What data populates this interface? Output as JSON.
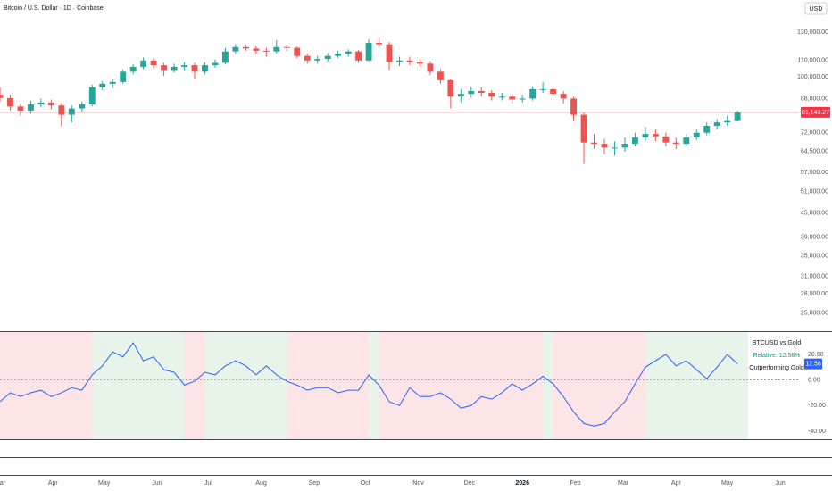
{
  "chart_data": [
    {
      "type": "candlestick",
      "title": "Bitcoin / U.S. Dollar · 1D · Coinbase",
      "currency": "USD",
      "x": [
        0,
        6,
        12,
        18,
        24,
        30,
        36,
        42,
        48,
        54,
        60,
        66,
        72,
        78,
        84,
        90,
        96,
        102,
        108,
        114,
        120,
        126,
        132,
        138,
        144,
        150,
        156,
        162,
        168,
        174,
        180,
        186,
        192,
        198,
        204,
        210,
        216,
        222,
        228,
        234,
        240,
        246,
        252,
        258,
        264,
        270,
        276,
        282,
        288,
        294,
        300,
        306,
        312,
        318,
        324,
        330,
        336,
        342,
        348,
        354,
        360,
        366,
        372,
        378,
        384,
        390,
        396,
        402,
        408,
        414,
        420,
        426,
        432
      ],
      "open": [
        90000,
        88300,
        84000,
        82000,
        85000,
        86000,
        84500,
        80000,
        83000,
        85000,
        94000,
        96000,
        97000,
        103000,
        106000,
        110000,
        107000,
        104000,
        106000,
        107000,
        103000,
        107000,
        108500,
        116000,
        119000,
        118000,
        116500,
        116000,
        119000,
        118500,
        113000,
        110000,
        111000,
        113000,
        114500,
        116000,
        110000,
        122000,
        121000,
        109000,
        110000,
        109000,
        108000,
        103000,
        98000,
        89000,
        90500,
        92000,
        91000,
        89000,
        89000,
        87500,
        88000,
        93000,
        93000,
        90500,
        88000,
        80000,
        68000,
        67500,
        66000,
        66000,
        67500,
        70000,
        71500,
        70500,
        68000,
        67500,
        70000,
        72000,
        75000,
        76500,
        77500
      ],
      "high": [
        94000,
        90000,
        85500,
        86800,
        88000,
        87500,
        85500,
        84500,
        86500,
        95500,
        97500,
        98500,
        104500,
        107500,
        112000,
        111500,
        108500,
        108000,
        109000,
        108500,
        108500,
        110500,
        118500,
        121000,
        120500,
        120000,
        118500,
        124000,
        121000,
        119500,
        114500,
        113000,
        115000,
        116500,
        117500,
        117000,
        124500,
        126000,
        122500,
        112500,
        112500,
        111000,
        109500,
        104500,
        99000,
        93000,
        94500,
        94000,
        92500,
        91000,
        90500,
        90000,
        94500,
        97000,
        94500,
        92000,
        89000,
        81000,
        71500,
        69500,
        68500,
        70000,
        72000,
        74500,
        73500,
        72000,
        70000,
        71500,
        73500,
        76500,
        78000,
        79500,
        82000
      ],
      "low": [
        86500,
        82000,
        79500,
        80500,
        83500,
        82500,
        74800,
        76500,
        81500,
        84000,
        92500,
        93500,
        96000,
        101500,
        104500,
        105000,
        100500,
        102500,
        104000,
        99000,
        101500,
        105500,
        107500,
        114500,
        116500,
        114500,
        112500,
        114500,
        116500,
        111500,
        108000,
        108000,
        109500,
        111500,
        112500,
        108500,
        109500,
        119500,
        104000,
        106500,
        107000,
        106000,
        101000,
        96000,
        83000,
        86000,
        88500,
        89000,
        87000,
        87000,
        85500,
        86000,
        87000,
        91000,
        89000,
        85500,
        77000,
        60000,
        65500,
        63500,
        63000,
        64500,
        66500,
        68500,
        68500,
        66500,
        65500,
        66500,
        69000,
        71000,
        73500,
        75000,
        77000
      ],
      "close": [
        88300,
        84000,
        82000,
        85000,
        86000,
        84500,
        80000,
        83000,
        85000,
        94000,
        96000,
        97000,
        103000,
        106000,
        110000,
        107000,
        104000,
        106000,
        107000,
        103000,
        107000,
        108500,
        116000,
        119000,
        118000,
        116500,
        116000,
        119000,
        118500,
        113000,
        110000,
        111000,
        113000,
        114500,
        116000,
        110000,
        122000,
        121000,
        109000,
        110000,
        109000,
        108000,
        103000,
        98000,
        89000,
        90500,
        92000,
        91000,
        89000,
        89000,
        87500,
        88000,
        93000,
        93000,
        90500,
        88000,
        80000,
        68000,
        67500,
        66000,
        66000,
        67500,
        70000,
        71500,
        70500,
        68000,
        67500,
        70000,
        72000,
        75000,
        76500,
        77500,
        81143.27
      ],
      "last_label": "81,143.27",
      "up_color": "#26a69a",
      "down_color": "#ef5350",
      "price_line_color": "#f23645",
      "log_scale": true,
      "xlim": [
        0,
        468
      ],
      "xticks": [
        {
          "value": 0,
          "label": "Mar"
        },
        {
          "value": 31,
          "label": "Apr"
        },
        {
          "value": 61,
          "label": "May"
        },
        {
          "value": 92,
          "label": "Jun"
        },
        {
          "value": 122,
          "label": "Jul"
        },
        {
          "value": 153,
          "label": "Aug"
        },
        {
          "value": 184,
          "label": "Sep"
        },
        {
          "value": 214,
          "label": "Oct"
        },
        {
          "value": 245,
          "label": "Nov"
        },
        {
          "value": 275,
          "label": "Dec"
        },
        {
          "value": 306,
          "label": "2026"
        },
        {
          "value": 337,
          "label": "Feb"
        },
        {
          "value": 365,
          "label": "Mar"
        },
        {
          "value": 396,
          "label": "Apr"
        },
        {
          "value": 426,
          "label": "May"
        },
        {
          "value": 457,
          "label": "Jun"
        }
      ],
      "ylim": [
        22600,
        156900
      ],
      "yticks": [
        {
          "value": 130000,
          "label": "130,000.00"
        },
        {
          "value": 110000,
          "label": "110,000.00"
        },
        {
          "value": 100000,
          "label": "100,000.00"
        },
        {
          "value": 88000,
          "label": "88,000.00"
        },
        {
          "value": 72000,
          "label": "72,000.00"
        },
        {
          "value": 64500,
          "label": "64,500.00"
        },
        {
          "value": 57000,
          "label": "57,000.00"
        },
        {
          "value": 51000,
          "label": "51,000.00"
        },
        {
          "value": 45000,
          "label": "45,000.00"
        },
        {
          "value": 39000,
          "label": "39,000.00"
        },
        {
          "value": 35000,
          "label": "35,000.00"
        },
        {
          "value": 31000,
          "label": "31,000.00"
        },
        {
          "value": 28000,
          "label": "28,000.00"
        },
        {
          "value": 25000,
          "label": "25,000.00"
        }
      ]
    },
    {
      "type": "line",
      "title": "BTCUSD vs Gold",
      "value_text": "Relative: 12.58%",
      "status": "Outperforming Gold",
      "x": [
        0,
        6,
        12,
        18,
        24,
        30,
        36,
        42,
        48,
        54,
        60,
        66,
        72,
        78,
        84,
        90,
        96,
        102,
        108,
        114,
        120,
        126,
        132,
        138,
        144,
        150,
        156,
        162,
        168,
        174,
        180,
        186,
        192,
        198,
        204,
        210,
        216,
        222,
        228,
        234,
        240,
        246,
        252,
        258,
        264,
        270,
        276,
        282,
        288,
        294,
        300,
        306,
        312,
        318,
        324,
        330,
        336,
        342,
        348,
        354,
        360,
        366,
        372,
        378,
        384,
        390,
        396,
        402,
        408,
        414,
        420,
        426,
        432
      ],
      "values": [
        -17,
        -10,
        -13,
        -10,
        -8,
        -13,
        -10,
        -6,
        -8,
        4,
        11,
        22,
        18,
        29,
        15,
        18,
        8,
        6,
        -4,
        -1,
        6,
        4,
        11,
        15,
        11,
        4,
        11,
        4,
        -1,
        -4,
        -8,
        -6,
        -6,
        -10,
        -8,
        -8,
        4,
        -4,
        -17,
        -20,
        -6,
        -13,
        -13,
        -10,
        -15,
        -22,
        -20,
        -13,
        -15,
        -10,
        -3,
        -8,
        -3,
        3,
        -3,
        -13,
        -25,
        -34,
        -36,
        -34,
        -25,
        -17,
        -3,
        10,
        15,
        20,
        11,
        15,
        8,
        1,
        10,
        20,
        12.58
      ],
      "color": "#2962ff",
      "value_color": "#089981",
      "positive_color": "#e8f3e9",
      "negative_color": "#fde4e7",
      "ylim": [
        -46.3,
        37.4
      ],
      "yticks": [
        {
          "value": 20,
          "label": "20.00"
        },
        {
          "value": 0,
          "label": "0.00"
        },
        {
          "value": -20,
          "label": "-20.00"
        },
        {
          "value": -40,
          "label": "-40.00"
        }
      ]
    }
  ]
}
